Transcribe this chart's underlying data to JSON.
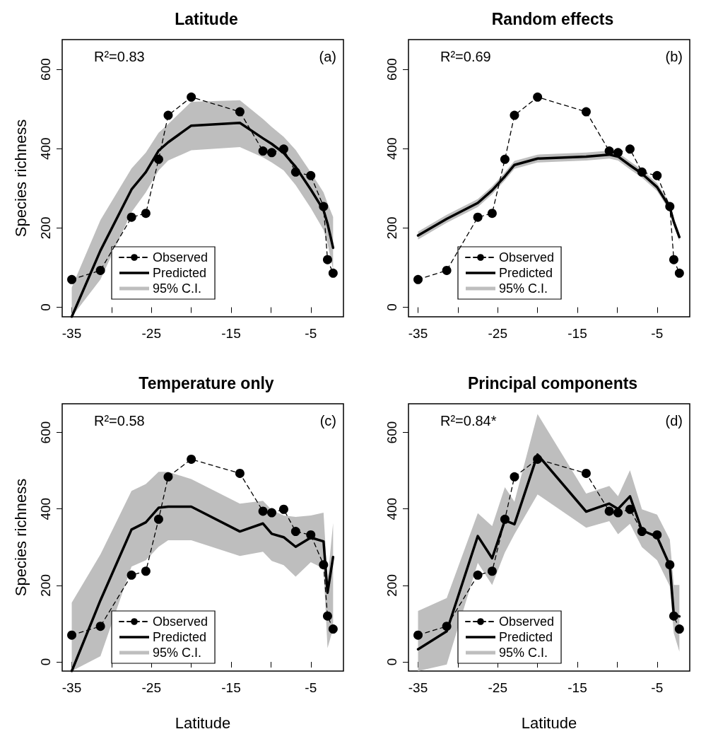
{
  "chart_data": [
    {
      "type": "line",
      "title": "Latitude",
      "ylabel": "Species richness",
      "annotations": [
        "R²=0.83",
        "(a)"
      ],
      "x": [
        -35,
        -31.4,
        -27.5,
        -25.7,
        -24.1,
        -22.9,
        -20,
        -13.9,
        -11,
        -9.9,
        -8.4,
        -6.9,
        -5,
        -3.4,
        -2.9,
        -2.2
      ],
      "series": [
        {
          "name": "Observed",
          "color": "#000000",
          "marker": "circle",
          "line_style": "dashed",
          "values": [
            70,
            93,
            227,
            237,
            373,
            484,
            530,
            493,
            394,
            390,
            399,
            341,
            332,
            254,
            120,
            86
          ]
        },
        {
          "name": "Predicted",
          "color": "#000000",
          "marker": "none",
          "line_style": "solid",
          "values": [
            -24,
            143,
            297,
            341,
            395,
            416,
            458,
            465,
            426,
            412,
            389,
            354,
            297,
            245,
            211,
            150
          ]
        },
        {
          "name": "95% C.I.",
          "type": "area",
          "color": "#bebebe",
          "values": [
            null,
            null,
            null,
            null,
            null,
            null,
            null,
            null,
            null,
            null,
            null,
            null,
            null,
            null,
            null,
            null
          ],
          "lower": [
            -24,
            70,
            240,
            290,
            345,
            370,
            396,
            404,
            378,
            365,
            345,
            308,
            250,
            195,
            160,
            95
          ],
          "upper": [
            50,
            220,
            350,
            390,
            440,
            462,
            518,
            522,
            475,
            455,
            430,
            397,
            340,
            290,
            262,
            228
          ]
        }
      ],
      "xlim": [
        -36.2,
        -0.9
      ],
      "xticks": [
        -35,
        {
          "value": -30,
          "label": null
        },
        -25,
        {
          "value": -20,
          "label": null
        },
        -15,
        {
          "value": -10,
          "label": null
        },
        -5
      ],
      "ylim": [
        -24,
        675
      ],
      "yticks": [
        0,
        200,
        400,
        600
      ],
      "legend": "bottom"
    },
    {
      "type": "line",
      "title": "Random effects",
      "annotations": [
        "R²=0.69",
        "(b)"
      ],
      "x": [
        -35,
        -31.4,
        -27.5,
        -25.7,
        -24.1,
        -22.9,
        -20,
        -13.9,
        -11,
        -9.9,
        -8.4,
        -6.9,
        -5,
        -3.4,
        -2.9,
        -2.2
      ],
      "series": [
        {
          "name": "Observed",
          "color": "#000000",
          "marker": "circle",
          "line_style": "dashed",
          "values": [
            70,
            93,
            227,
            237,
            373,
            484,
            530,
            493,
            394,
            390,
            399,
            341,
            332,
            254,
            120,
            86
          ]
        },
        {
          "name": "Predicted",
          "color": "#000000",
          "marker": "none",
          "line_style": "solid",
          "values": [
            181,
            223,
            263,
            295,
            330,
            359,
            375,
            380,
            385,
            380,
            358,
            337,
            303,
            252,
            215,
            177
          ]
        },
        {
          "name": "95% C.I.",
          "type": "area",
          "color": "#bebebe",
          "values": [
            null,
            null,
            null,
            null,
            null,
            null,
            null,
            null,
            null,
            null,
            null,
            null,
            null,
            null,
            null,
            null
          ],
          "lower": [
            171,
            213,
            253,
            285,
            320,
            349,
            365,
            370,
            375,
            370,
            348,
            327,
            293,
            242,
            205,
            167
          ],
          "upper": [
            191,
            233,
            273,
            305,
            340,
            369,
            385,
            390,
            395,
            390,
            368,
            347,
            313,
            262,
            225,
            187
          ]
        }
      ],
      "xlim": [
        -36.2,
        -0.9
      ],
      "xticks": [
        -35,
        {
          "value": -30,
          "label": null
        },
        -25,
        {
          "value": -20,
          "label": null
        },
        -15,
        {
          "value": -10,
          "label": null
        },
        -5
      ],
      "ylim": [
        -24,
        675
      ],
      "yticks": [
        0,
        200,
        400,
        600
      ],
      "legend": "bottom"
    },
    {
      "type": "line",
      "title": "Temperature only",
      "xlabel": "Latitude",
      "ylabel": "Species richness",
      "annotations": [
        "R²=0.58",
        "(c)"
      ],
      "x": [
        -35,
        -31.4,
        -27.5,
        -25.7,
        -24.1,
        -22.9,
        -20,
        -13.9,
        -11,
        -9.9,
        -8.4,
        -6.9,
        -5,
        -3.4,
        -2.9,
        -2.2
      ],
      "series": [
        {
          "name": "Observed",
          "color": "#000000",
          "marker": "circle",
          "line_style": "dashed",
          "values": [
            70,
            93,
            227,
            237,
            373,
            484,
            530,
            493,
            394,
            390,
            399,
            341,
            332,
            254,
            120,
            86
          ]
        },
        {
          "name": "Predicted",
          "color": "#000000",
          "marker": "none",
          "line_style": "solid",
          "values": [
            -24,
            161,
            346,
            365,
            403,
            406,
            406,
            341,
            362,
            335,
            326,
            301,
            325,
            315,
            181,
            274
          ]
        },
        {
          "name": "95% C.I.",
          "type": "area",
          "color": "#bebebe",
          "values": [
            null,
            null,
            null,
            null,
            null,
            null,
            null,
            null,
            null,
            null,
            null,
            null,
            null,
            null,
            null,
            null
          ],
          "lower": [
            -24,
            15,
            249,
            266,
            301,
            318,
            318,
            277,
            288,
            264,
            253,
            223,
            261,
            244,
            36,
            87
          ],
          "upper": [
            155,
            281,
            447,
            465,
            497,
            497,
            478,
            414,
            421,
            397,
            383,
            379,
            383,
            390,
            213,
            363
          ]
        }
      ],
      "xlim": [
        -36.2,
        -0.9
      ],
      "xticks": [
        -35,
        {
          "value": -30,
          "label": null
        },
        -25,
        {
          "value": -20,
          "label": null
        },
        -15,
        {
          "value": -10,
          "label": null
        },
        -5
      ],
      "ylim": [
        -24,
        675
      ],
      "yticks": [
        0,
        200,
        400,
        600
      ],
      "legend": "bottom"
    },
    {
      "type": "line",
      "title": "Principal components",
      "xlabel": "Latitude",
      "annotations": [
        "R²=0.84*",
        "(d)"
      ],
      "x": [
        -35,
        -31.4,
        -27.5,
        -25.7,
        -24.1,
        -22.9,
        -20,
        -13.9,
        -11,
        -9.9,
        -8.4,
        -6.9,
        -5,
        -3.4,
        -2.9,
        -2.2
      ],
      "series": [
        {
          "name": "Observed",
          "color": "#000000",
          "marker": "circle",
          "line_style": "dashed",
          "values": [
            70,
            93,
            227,
            237,
            373,
            484,
            530,
            493,
            394,
            390,
            399,
            341,
            332,
            254,
            120,
            86
          ]
        },
        {
          "name": "Predicted",
          "color": "#000000",
          "marker": "none",
          "line_style": "solid",
          "values": [
            33,
            80,
            329,
            271,
            370,
            360,
            542,
            393,
            414,
            400,
            433,
            344,
            327,
            252,
            123,
            119
          ]
        },
        {
          "name": "95% C.I.",
          "type": "area",
          "color": "#bebebe",
          "values": [
            null,
            null,
            null,
            null,
            null,
            null,
            null,
            null,
            null,
            null,
            null,
            null,
            null,
            null,
            null,
            null
          ],
          "lower": [
            -24,
            -7,
            259,
            201,
            286,
            334,
            438,
            351,
            368,
            334,
            361,
            300,
            266,
            198,
            75,
            27
          ],
          "upper": [
            133,
            167,
            389,
            355,
            457,
            419,
            648,
            440,
            460,
            433,
            501,
            399,
            385,
            320,
            201,
            201
          ]
        }
      ],
      "xlim": [
        -36.2,
        -0.9
      ],
      "xticks": [
        -35,
        {
          "value": -30,
          "label": null
        },
        -25,
        {
          "value": -20,
          "label": null
        },
        -15,
        {
          "value": -10,
          "label": null
        },
        -5
      ],
      "ylim": [
        -24,
        675
      ],
      "yticks": [
        0,
        200,
        400,
        600
      ],
      "legend": "bottom"
    }
  ]
}
